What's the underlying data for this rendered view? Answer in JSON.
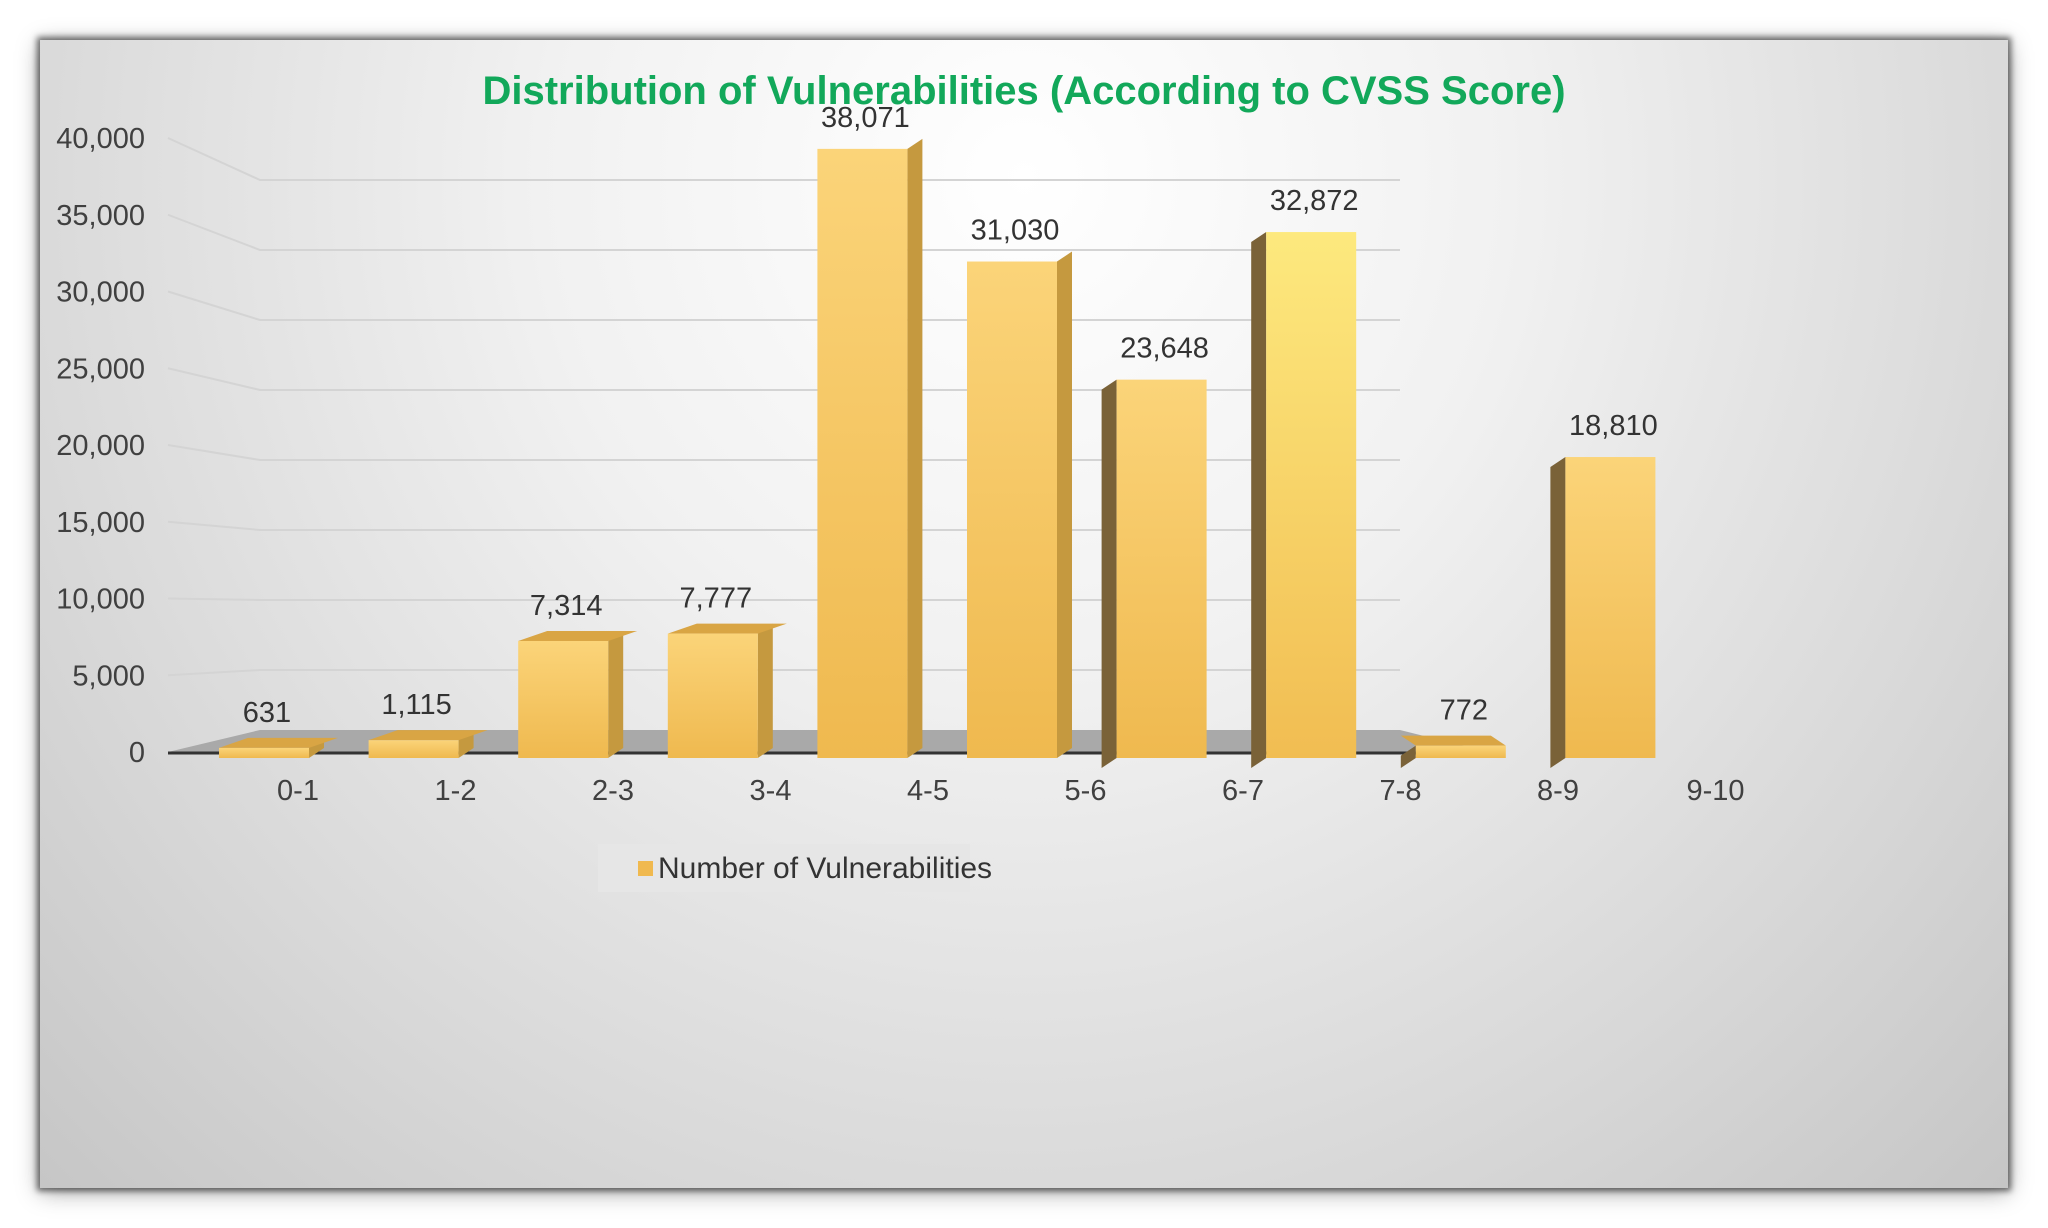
{
  "chart_data": {
    "type": "bar",
    "title": "Distribution of Vulnerabilities (According to CVSS Score)",
    "categories": [
      "0-1",
      "1-2",
      "2-3",
      "3-4",
      "4-5",
      "5-6",
      "6-7",
      "7-8",
      "8-9",
      "9-10"
    ],
    "series": [
      {
        "name": "Number of Vulnerabilities",
        "values": [
          631,
          1115,
          7314,
          7777,
          38071,
          31030,
          23648,
          32872,
          772,
          18810
        ],
        "value_labels": [
          "631",
          "1,115",
          "7,314",
          "7,777",
          "38,071",
          "31,030",
          "23,648",
          "32,872",
          "772",
          "18,810"
        ]
      }
    ],
    "ylim": [
      0,
      40000
    ],
    "yticks": [
      0,
      5000,
      10000,
      15000,
      20000,
      25000,
      30000,
      35000,
      40000
    ],
    "ytick_labels": [
      "0",
      "5,000",
      "10,000",
      "15,000",
      "20,000",
      "25,000",
      "30,000",
      "35,000",
      "40,000"
    ],
    "grid": true,
    "style": "3d-perspective",
    "legend_position": "bottom",
    "colors": {
      "bar_front": "#f5c160",
      "bar_side_dark": "#7a6238",
      "bar_top": "#e1ad49",
      "title": "#12a85a",
      "floor": "#a9a9a9"
    }
  }
}
